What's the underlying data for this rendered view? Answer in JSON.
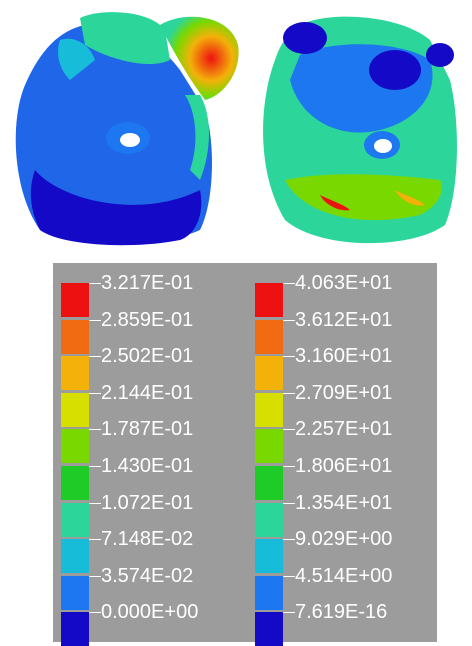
{
  "figure": {
    "left_part_label": "",
    "right_part_label": ""
  },
  "legends": [
    {
      "name": "",
      "labels": [
        "3.217E-01",
        "2.859E-01",
        "2.502E-01",
        "2.144E-01",
        "1.787E-01",
        "1.430E-01",
        "1.072E-01",
        "7.148E-02",
        "3.574E-02",
        "0.000E+00"
      ],
      "colors": [
        "#ee1111",
        "#f06b12",
        "#f3b10a",
        "#d6df00",
        "#78d800",
        "#1fcb27",
        "#2cd69a",
        "#17bcd8",
        "#1d77f0",
        "#1409c6"
      ]
    },
    {
      "name": "",
      "labels": [
        "4.063E+01",
        "3.612E+01",
        "3.160E+01",
        "2.709E+01",
        "2.257E+01",
        "1.806E+01",
        "1.354E+01",
        "9.029E+00",
        "4.514E+00",
        "7.619E-16"
      ],
      "colors": [
        "#ee1111",
        "#f06b12",
        "#f3b10a",
        "#d6df00",
        "#78d800",
        "#1fcb27",
        "#2cd69a",
        "#17bcd8",
        "#1d77f0",
        "#1409c6"
      ]
    }
  ]
}
